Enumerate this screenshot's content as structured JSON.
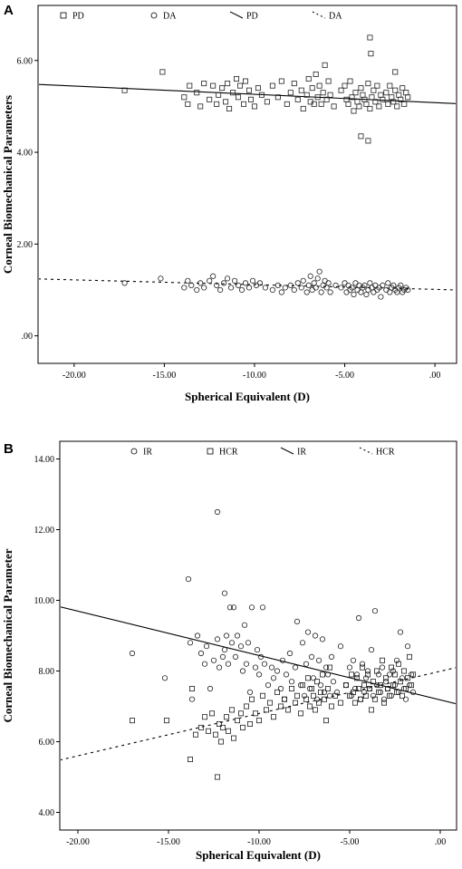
{
  "chart_data": [
    {
      "panel": "A",
      "type": "scatter",
      "xlabel": "Spherical Equivalent (D)",
      "ylabel": "Corneal Biomechanical Parameters",
      "xlim": [
        -22,
        1.2
      ],
      "ylim": [
        -0.6,
        7.2
      ],
      "xticks": [
        -20,
        -15,
        -10,
        -5,
        0
      ],
      "xtick_labels": [
        "-20.00",
        "-15.00",
        "-10.00",
        "-5.00",
        ".00"
      ],
      "yticks": [
        0,
        2,
        4,
        6
      ],
      "ytick_labels": [
        ".00",
        "2.00",
        "4.00",
        "6.00"
      ],
      "legend": {
        "position": "top",
        "entries": [
          {
            "marker": "square",
            "label": "PD"
          },
          {
            "marker": "circle",
            "label": "DA"
          },
          {
            "marker": "solid-line",
            "label": "PD"
          },
          {
            "marker": "dashed-line",
            "label": "DA"
          }
        ]
      },
      "series": [
        {
          "name": "PD",
          "marker": "square",
          "x": [
            -17.2,
            -15.1,
            -13.9,
            -13.6,
            -13.7,
            -13.2,
            -13,
            -12.8,
            -12.5,
            -12.3,
            -12.1,
            -12,
            -11.8,
            -11.6,
            -11.5,
            -11.4,
            -11.2,
            -11,
            -10.9,
            -10.8,
            -10.6,
            -10.5,
            -10.3,
            -10.2,
            -10,
            -9.8,
            -9.6,
            -9.3,
            -9,
            -8.7,
            -8.5,
            -8.2,
            -8,
            -7.8,
            -7.6,
            -7.4,
            -7.3,
            -7.1,
            -7,
            -6.9,
            -6.8,
            -6.7,
            -6.6,
            -6.5,
            -6.4,
            -6.3,
            -6.2,
            -6.1,
            -6,
            -5.9,
            -5.8,
            -5.6,
            -5.2,
            -5,
            -4.9,
            -4.8,
            -4.7,
            -4.6,
            -4.5,
            -4.4,
            -4.3,
            -4.2,
            -4.1,
            -4,
            -3.9,
            -3.8,
            -3.7,
            -3.6,
            -3.5,
            -3.4,
            -3.3,
            -3.2,
            -3.1,
            -3,
            -2.9,
            -2.7,
            -2.6,
            -2.5,
            -2.4,
            -2.3,
            -2.2,
            -2.1,
            -2,
            -1.9,
            -1.8,
            -1.7,
            -1.6,
            -1.5,
            -3.6,
            -3.55,
            -3.7,
            -4.1,
            -2.2
          ],
          "y": [
            5.35,
            5.75,
            5.2,
            5.45,
            5.05,
            5.3,
            5,
            5.5,
            5.15,
            5.45,
            5.05,
            5.25,
            5.4,
            5.1,
            5.5,
            4.95,
            5.3,
            5.6,
            5.2,
            5.45,
            5.05,
            5.55,
            5.35,
            5.15,
            5,
            5.4,
            5.25,
            5.1,
            5.45,
            5.2,
            5.55,
            5.05,
            5.3,
            5.5,
            5.15,
            5.35,
            4.95,
            5.25,
            5.6,
            5.1,
            5.4,
            5.05,
            5.7,
            5.2,
            5.45,
            5.05,
            5.3,
            5.9,
            5.15,
            5.55,
            5.25,
            5,
            5.35,
            5.45,
            5.15,
            5.05,
            5.55,
            5.2,
            4.9,
            5.3,
            5.1,
            5,
            5.4,
            5.25,
            5.15,
            5.05,
            5.5,
            4.95,
            5.2,
            5.35,
            5.1,
            5.45,
            5,
            5.25,
            5.15,
            5.3,
            5.05,
            5.45,
            5.2,
            5.1,
            5.35,
            5,
            5.25,
            5.15,
            5.4,
            5.05,
            5.3,
            5.2,
            6.5,
            6.15,
            4.25,
            4.35,
            5.75
          ]
        },
        {
          "name": "DA",
          "marker": "circle",
          "x": [
            -17.2,
            -15.2,
            -13.9,
            -13.7,
            -13.5,
            -13.2,
            -13,
            -12.8,
            -12.5,
            -12.3,
            -12.1,
            -11.9,
            -11.7,
            -11.5,
            -11.3,
            -11.1,
            -10.9,
            -10.7,
            -10.5,
            -10.3,
            -10.1,
            -9.9,
            -9.7,
            -9.4,
            -9,
            -8.7,
            -8.5,
            -8.3,
            -8,
            -7.8,
            -7.6,
            -7.4,
            -7.3,
            -7.1,
            -7,
            -6.9,
            -6.8,
            -6.7,
            -6.6,
            -6.5,
            -6.4,
            -6.3,
            -6.2,
            -6.1,
            -6,
            -5.9,
            -5.8,
            -5.5,
            -5.2,
            -5,
            -4.9,
            -4.8,
            -4.7,
            -4.6,
            -4.5,
            -4.4,
            -4.3,
            -4.2,
            -4.1,
            -4,
            -3.9,
            -3.8,
            -3.7,
            -3.6,
            -3.5,
            -3.4,
            -3.3,
            -3.2,
            -3.1,
            -3,
            -2.9,
            -2.7,
            -2.6,
            -2.5,
            -2.4,
            -2.3,
            -2.2,
            -2.1,
            -2,
            -1.9,
            -1.8,
            -1.7,
            -1.6,
            -1.5
          ],
          "y": [
            1.15,
            1.25,
            1.05,
            1.2,
            1.1,
            1,
            1.15,
            1.05,
            1.2,
            1.3,
            1.1,
            1,
            1.15,
            1.25,
            1.05,
            1.2,
            1.1,
            1,
            1.15,
            1.05,
            1.2,
            1.1,
            1.15,
            1.05,
            1,
            1.1,
            0.95,
            1.05,
            1.1,
            1,
            1.15,
            1.05,
            1.2,
            0.95,
            1.1,
            1.3,
            1,
            1.15,
            1.05,
            1.25,
            1.4,
            0.95,
            1.1,
            1.2,
            1.05,
            1.15,
            0.95,
            1.1,
            1.05,
            1.15,
            0.95,
            1.1,
            1,
            1.05,
            0.9,
            1.15,
            1,
            1.1,
            0.95,
            1.05,
            1.1,
            0.9,
            1,
            1.15,
            1.05,
            0.95,
            1.1,
            1,
            1.05,
            0.85,
            1.1,
            1,
            1.15,
            0.95,
            1.05,
            1.1,
            1,
            0.95,
            1.05,
            1.1,
            0.95,
            1,
            1.05,
            1
          ]
        }
      ],
      "fit_lines": [
        {
          "name": "PD",
          "style": "solid",
          "x": [
            -22,
            1.2
          ],
          "y": [
            5.48,
            5.06
          ]
        },
        {
          "name": "DA",
          "style": "dashed",
          "x": [
            -22,
            1.2
          ],
          "y": [
            1.24,
            1
          ]
        }
      ]
    },
    {
      "panel": "B",
      "type": "scatter",
      "xlabel": "Spherical Equivalent (D)",
      "ylabel": "Corneal Biomechanical Parameter",
      "xlim": [
        -21,
        0.9
      ],
      "ylim": [
        3.5,
        14.5
      ],
      "xticks": [
        -20,
        -15,
        -10,
        -5,
        0
      ],
      "xtick_labels": [
        "-20.00",
        "-15.00",
        "-10.00",
        "-5.00",
        ".00"
      ],
      "yticks": [
        4,
        6,
        8,
        10,
        12,
        14
      ],
      "ytick_labels": [
        "4.00",
        "6.00",
        "8.00",
        "10.00",
        "12.00",
        "14.00"
      ],
      "legend": {
        "position": "top",
        "entries": [
          {
            "marker": "circle",
            "label": "IR"
          },
          {
            "marker": "square",
            "label": "HCR"
          },
          {
            "marker": "solid-line",
            "label": "IR"
          },
          {
            "marker": "dashed-line",
            "label": "HCR"
          }
        ]
      },
      "series": [
        {
          "name": "IR",
          "marker": "circle",
          "x": [
            -17,
            -15.2,
            -13.9,
            -13.8,
            -13.7,
            -13.4,
            -13.2,
            -13,
            -12.9,
            -12.7,
            -12.5,
            -12.3,
            -12.2,
            -12,
            -11.9,
            -11.8,
            -11.7,
            -11.6,
            -11.5,
            -11.4,
            -11.3,
            -11.2,
            -11,
            -10.9,
            -10.8,
            -10.7,
            -10.6,
            -10.5,
            -10.4,
            -10.2,
            -10.1,
            -10,
            -9.9,
            -9.8,
            -9.7,
            -9.5,
            -9.3,
            -9.2,
            -9,
            -8.8,
            -8.7,
            -8.6,
            -8.5,
            -8.3,
            -8.2,
            -8,
            -7.9,
            -7.7,
            -7.6,
            -7.5,
            -7.4,
            -7.3,
            -7.2,
            -7.1,
            -7,
            -6.9,
            -6.8,
            -6.7,
            -6.6,
            -6.5,
            -6.4,
            -6.3,
            -6.2,
            -6.1,
            -6,
            -5.9,
            -5.7,
            -5.5,
            -5.2,
            -5,
            -4.9,
            -4.8,
            -4.7,
            -4.6,
            -4.5,
            -4.4,
            -4.3,
            -4.2,
            -4.1,
            -4,
            -3.9,
            -3.8,
            -3.7,
            -3.6,
            -3.5,
            -3.4,
            -3.3,
            -3.2,
            -3.1,
            -3,
            -2.9,
            -2.8,
            -2.7,
            -2.6,
            -2.5,
            -2.4,
            -2.3,
            -2.2,
            -2.1,
            -2,
            -1.9,
            -1.8,
            -1.7,
            -1.6,
            -1.5,
            -12.3,
            -11.9
          ],
          "y": [
            8.5,
            7.8,
            10.6,
            8.8,
            7.2,
            9,
            8.5,
            8.2,
            8.7,
            7.5,
            8.3,
            8.9,
            8.1,
            8.4,
            8.6,
            9,
            8.2,
            9.8,
            8.8,
            9.8,
            8.4,
            9,
            8.7,
            8,
            9.3,
            8.2,
            8.8,
            7.4,
            9.8,
            8.1,
            8.6,
            7.9,
            8.4,
            9.8,
            8.2,
            7.6,
            8.1,
            7.8,
            8,
            7.5,
            8.3,
            7.2,
            7.9,
            8.5,
            7.7,
            8.1,
            9.4,
            7.6,
            8.8,
            7.3,
            8.2,
            9.1,
            7.5,
            8.4,
            7.8,
            9,
            7.2,
            8.3,
            7.6,
            8.9,
            7.4,
            8.1,
            7.9,
            7.3,
            8.4,
            7.7,
            7.4,
            8.7,
            7.6,
            8.1,
            7.3,
            8.3,
            7.5,
            7.9,
            9.5,
            7.2,
            8.2,
            7.4,
            7.8,
            8,
            7.5,
            8.6,
            7.3,
            9.7,
            7.6,
            7.9,
            7.4,
            8.1,
            7.2,
            7.7,
            7.5,
            7.9,
            7.3,
            8,
            7.6,
            8.3,
            7.4,
            9.1,
            7.8,
            7.5,
            7.2,
            8.7,
            7.6,
            7.9,
            7.4,
            12.5,
            10.2
          ]
        },
        {
          "name": "HCR",
          "marker": "square",
          "x": [
            -17,
            -15.1,
            -13.8,
            -13.7,
            -13.5,
            -13.2,
            -13,
            -12.8,
            -12.6,
            -12.4,
            -12.2,
            -12.1,
            -12,
            -11.8,
            -11.7,
            -11.5,
            -11.4,
            -11.2,
            -11,
            -10.9,
            -10.7,
            -10.5,
            -10.4,
            -10.2,
            -10,
            -9.8,
            -9.6,
            -9.4,
            -9.2,
            -9,
            -8.8,
            -8.6,
            -8.4,
            -8.2,
            -8,
            -7.9,
            -7.7,
            -7.6,
            -7.4,
            -7.3,
            -7.2,
            -7.1,
            -7,
            -6.9,
            -6.8,
            -6.7,
            -6.6,
            -6.5,
            -6.4,
            -6.3,
            -6.2,
            -6.1,
            -6,
            -5.8,
            -5.5,
            -5.2,
            -5,
            -4.9,
            -4.8,
            -4.7,
            -4.6,
            -4.5,
            -4.4,
            -4.3,
            -4.2,
            -4.1,
            -4,
            -3.9,
            -3.8,
            -3.7,
            -3.6,
            -3.5,
            -3.4,
            -3.3,
            -3.2,
            -3.1,
            -3,
            -2.9,
            -2.8,
            -2.7,
            -2.6,
            -2.5,
            -2.4,
            -2.3,
            -2.2,
            -2.1,
            -2,
            -1.9,
            -1.8,
            -1.7,
            -1.6,
            -1.5,
            -12.3
          ],
          "y": [
            6.6,
            6.6,
            5.5,
            7.5,
            6.2,
            6.4,
            6.7,
            6.3,
            6.8,
            6.2,
            6.5,
            6,
            6.4,
            6.7,
            6.3,
            6.9,
            6.1,
            6.6,
            6.8,
            6.4,
            7,
            6.5,
            7.2,
            6.8,
            6.6,
            7.3,
            6.9,
            7.1,
            6.7,
            7.4,
            7,
            7.2,
            6.9,
            7.5,
            7.1,
            7.3,
            6.8,
            7.6,
            7.2,
            7.8,
            7,
            7.5,
            7.3,
            6.9,
            7.7,
            7.1,
            7.4,
            7.9,
            7.2,
            6.6,
            7.5,
            8.1,
            7,
            7.3,
            7.1,
            7.6,
            7.3,
            7.9,
            7.4,
            7.1,
            7.8,
            7.5,
            7.2,
            8.1,
            7.6,
            7.3,
            7.9,
            7.5,
            6.9,
            7.7,
            7.2,
            8,
            7.4,
            7.6,
            8.3,
            7.1,
            7.8,
            7.5,
            7.3,
            8.1,
            7.6,
            7.9,
            7.4,
            8.2,
            7.7,
            7.3,
            8,
            7.5,
            7.8,
            8.4,
            7.6,
            7.9,
            5
          ]
        }
      ],
      "fit_lines": [
        {
          "name": "IR",
          "style": "solid",
          "x": [
            -21,
            0.9
          ],
          "y": [
            9.82,
            7.07
          ]
        },
        {
          "name": "HCR",
          "style": "dashed",
          "x": [
            -21,
            0.9
          ],
          "y": [
            5.48,
            8.1
          ]
        }
      ]
    }
  ]
}
